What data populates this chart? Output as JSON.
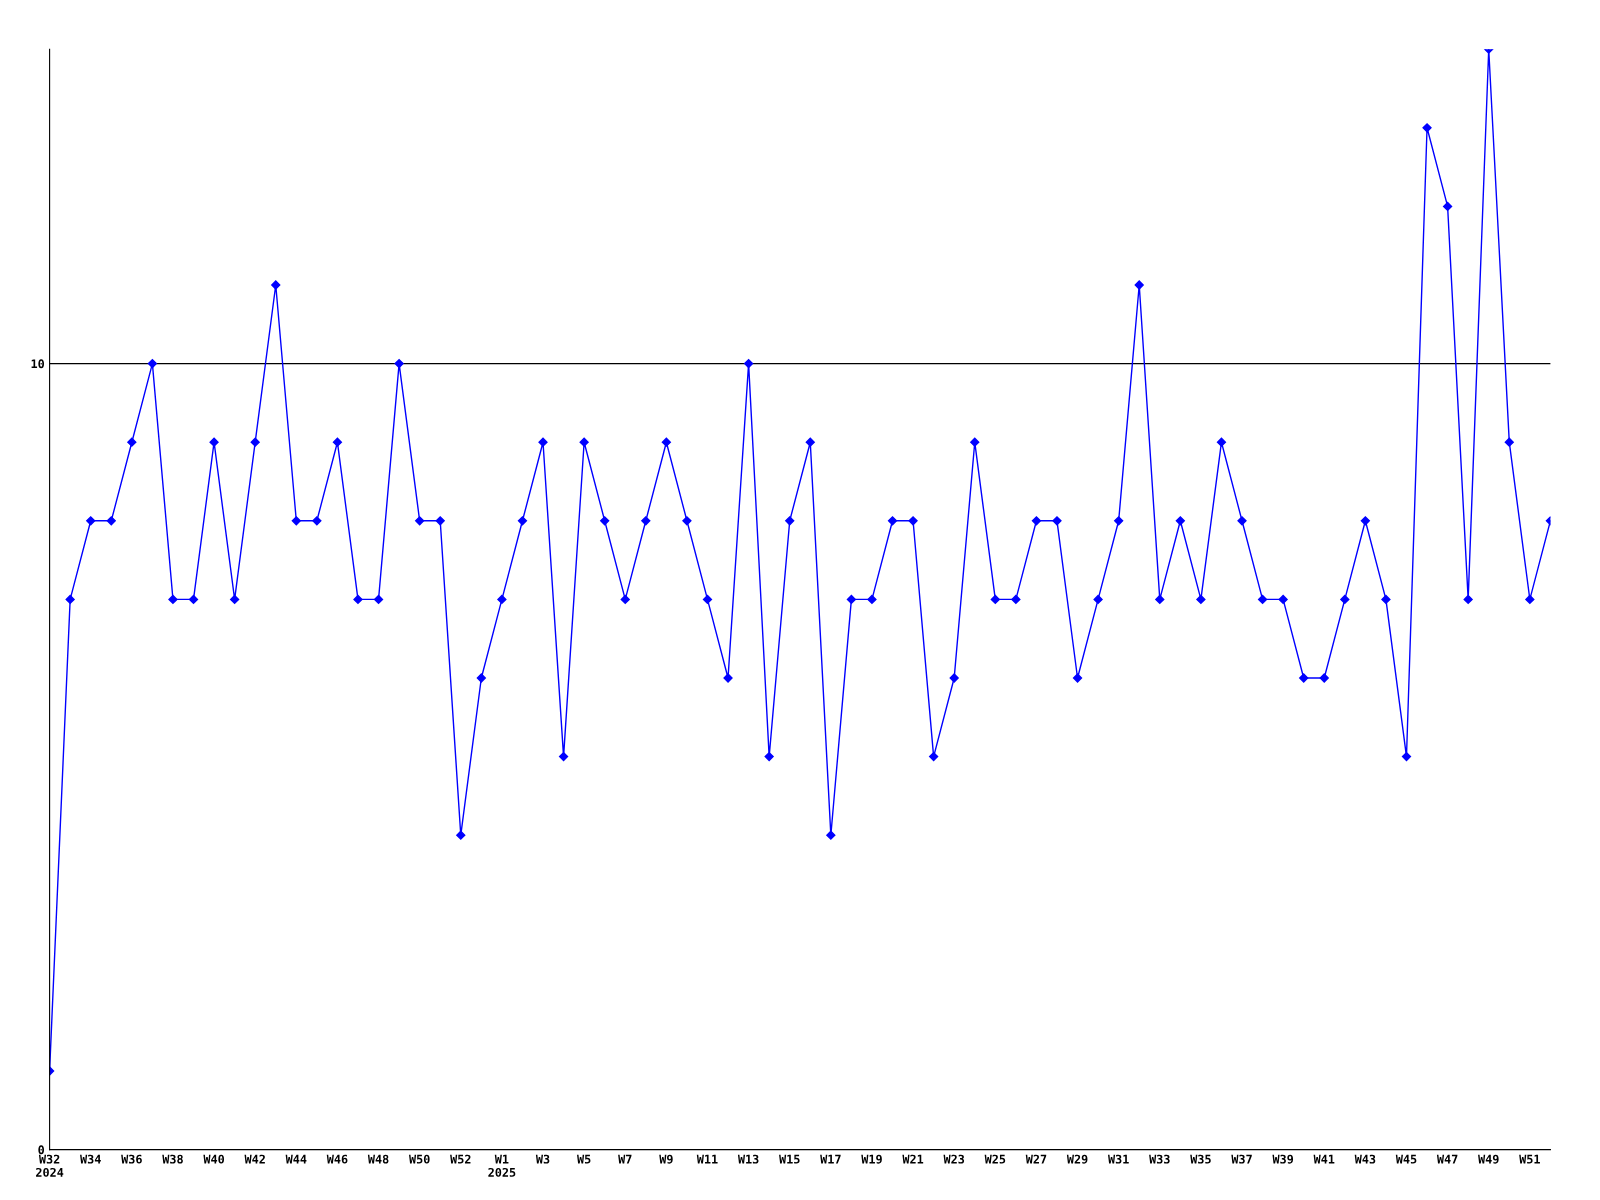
{
  "chart_data": {
    "type": "line",
    "categories": [
      "W32\n2024",
      null,
      "W34",
      null,
      "W36",
      null,
      "W38",
      null,
      "W40",
      null,
      "W42",
      null,
      "W44",
      null,
      "W46",
      null,
      "W48",
      null,
      "W50",
      null,
      "W52",
      null,
      "W1\n2025",
      null,
      "W3",
      null,
      "W5",
      null,
      "W7",
      null,
      "W9",
      null,
      "W11",
      null,
      "W13",
      null,
      "W15",
      null,
      "W17",
      null,
      "W19",
      null,
      "W21",
      null,
      "W23",
      null,
      "W25",
      null,
      "W27",
      null,
      "W29",
      null,
      "W31",
      null,
      "W33",
      null,
      "W35",
      null,
      "W37",
      null,
      "W39",
      null,
      "W41",
      null,
      "W43",
      null,
      "W45",
      null,
      "W47",
      null,
      "W49",
      null,
      "W51",
      null
    ],
    "series": [
      {
        "color": "#0000ff",
        "values": [
          1,
          7,
          8,
          8,
          9,
          10,
          7,
          7,
          9,
          7,
          9,
          11,
          8,
          8,
          9,
          7,
          7,
          10,
          8,
          8,
          4,
          6,
          7,
          8,
          9,
          5,
          9,
          8,
          7,
          8,
          9,
          8,
          7,
          6,
          10,
          5,
          8,
          9,
          4,
          7,
          7,
          8,
          8,
          5,
          6,
          9,
          7,
          7,
          8,
          8,
          6,
          7,
          8,
          11,
          7,
          8,
          7,
          9,
          8,
          7,
          7,
          6,
          6,
          7,
          8,
          7,
          5,
          13,
          12,
          7,
          14,
          9,
          7,
          8
        ]
      }
    ],
    "ylim": [
      0,
      14
    ],
    "yticks": [
      0,
      10
    ],
    "grid": "y",
    "marker": "diamond",
    "line_style": "solid",
    "legend": false
  }
}
